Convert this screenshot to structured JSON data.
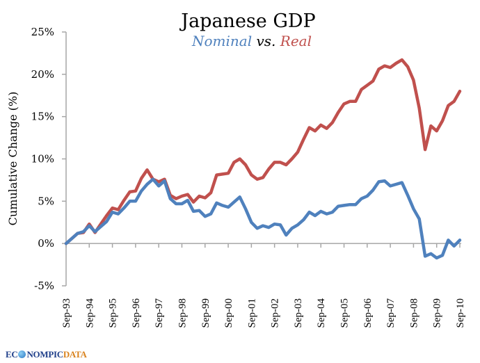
{
  "chart_data": {
    "type": "line",
    "title": "Japanese GDP",
    "subtitle": {
      "parts": [
        {
          "text": "Nominal",
          "color": "#4f81bd"
        },
        {
          "text": " vs. ",
          "color": "#000000"
        },
        {
          "text": "Real",
          "color": "#c0504d"
        }
      ]
    },
    "xlabel": "",
    "ylabel": "Cumulative Change (%)",
    "ylim": [
      -5,
      25
    ],
    "yticks": [
      -5,
      0,
      5,
      10,
      15,
      20,
      25
    ],
    "ytick_labels": [
      "-5%",
      "0%",
      "5%",
      "10%",
      "15%",
      "20%",
      "25%"
    ],
    "xtick_labels": [
      "Sep-93",
      "Sep-94",
      "Sep-95",
      "Sep-96",
      "Sep-97",
      "Sep-98",
      "Sep-99",
      "Sep-00",
      "Sep-01",
      "Sep-02",
      "Sep-03",
      "Sep-04",
      "Sep-05",
      "Sep-06",
      "Sep-07",
      "Sep-08",
      "Sep-09",
      "Sep-10"
    ],
    "x_frequency": "quarterly",
    "x_start": "Sep-93",
    "x_end": "Sep-10",
    "grid": false,
    "legend": "none (series named in subtitle)",
    "series": [
      {
        "name": "Nominal",
        "color": "#4f81bd",
        "values": [
          0.0,
          0.6,
          1.2,
          1.4,
          2.1,
          1.4,
          2.0,
          2.6,
          3.7,
          3.5,
          4.2,
          5.0,
          5.0,
          6.2,
          7.0,
          7.6,
          6.8,
          7.4,
          5.3,
          4.7,
          4.7,
          5.1,
          3.8,
          3.9,
          3.2,
          3.5,
          4.8,
          4.5,
          4.3,
          4.9,
          5.5,
          4.1,
          2.5,
          1.8,
          2.1,
          1.9,
          2.3,
          2.2,
          1.0,
          1.8,
          2.2,
          2.8,
          3.7,
          3.3,
          3.8,
          3.5,
          3.7,
          4.4,
          4.5,
          4.6,
          4.6,
          5.3,
          5.6,
          6.3,
          7.3,
          7.4,
          6.8,
          7.0,
          7.2,
          5.7,
          4.1,
          2.9,
          -1.5,
          -1.2,
          -1.7,
          -1.4,
          0.4,
          -0.3,
          0.4
        ]
      },
      {
        "name": "Real",
        "color": "#c0504d",
        "values": [
          0.0,
          0.6,
          1.2,
          1.3,
          2.3,
          1.3,
          2.3,
          3.3,
          4.2,
          4.0,
          5.1,
          6.1,
          6.2,
          7.7,
          8.7,
          7.6,
          7.3,
          7.6,
          5.7,
          5.3,
          5.6,
          5.8,
          4.9,
          5.6,
          5.4,
          6.0,
          8.1,
          8.2,
          8.3,
          9.6,
          10.0,
          9.3,
          8.1,
          7.6,
          7.8,
          8.8,
          9.6,
          9.6,
          9.3,
          10.0,
          10.8,
          12.3,
          13.7,
          13.3,
          14.0,
          13.6,
          14.3,
          15.5,
          16.5,
          16.8,
          16.8,
          18.2,
          18.7,
          19.2,
          20.6,
          21.0,
          20.8,
          21.3,
          21.7,
          20.9,
          19.3,
          16.0,
          11.1,
          13.9,
          13.3,
          14.5,
          16.3,
          16.8,
          18.0
        ]
      }
    ]
  },
  "branding": {
    "logo_part1": "EC",
    "logo_part2": "NOMPIC",
    "logo_part3": "DATA",
    "logo_icon": "globe-icon"
  }
}
